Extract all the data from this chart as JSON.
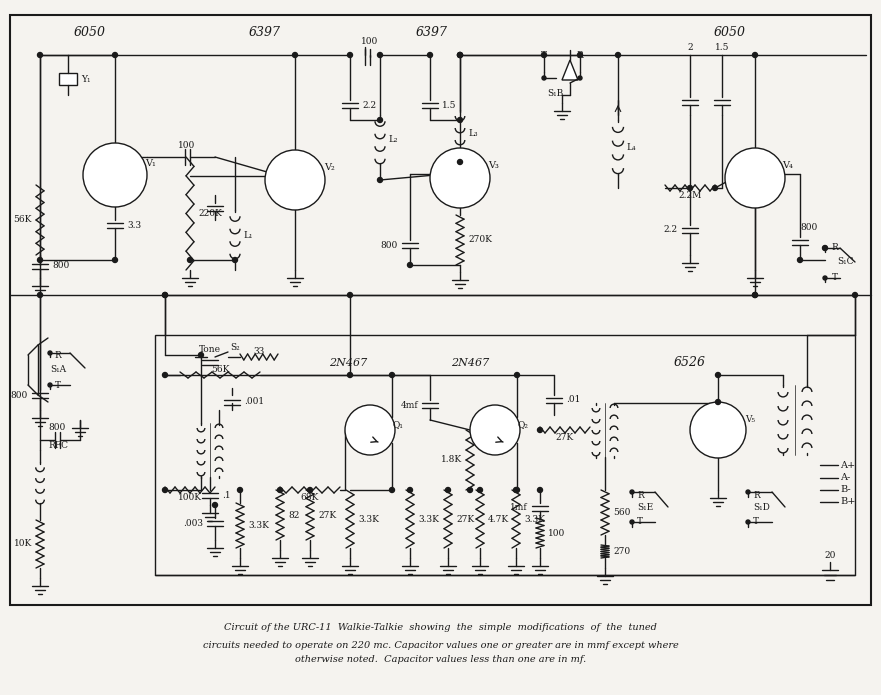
{
  "caption_line1": "Circuit of the URC-11  Walkie-Talkie  showing  the  simple  modifications  of  the  tuned",
  "caption_line2": "circuits needed to operate on 220 mc. Capacitor values one or greater are in mmf except where",
  "caption_line3": "otherwise noted.  Capacitor values less than one are in mf.",
  "bg_color": "#f5f3ef",
  "line_color": "#1a1a1a",
  "text_color": "#1a1a1a",
  "fig_width": 8.81,
  "fig_height": 6.95,
  "dpi": 100
}
